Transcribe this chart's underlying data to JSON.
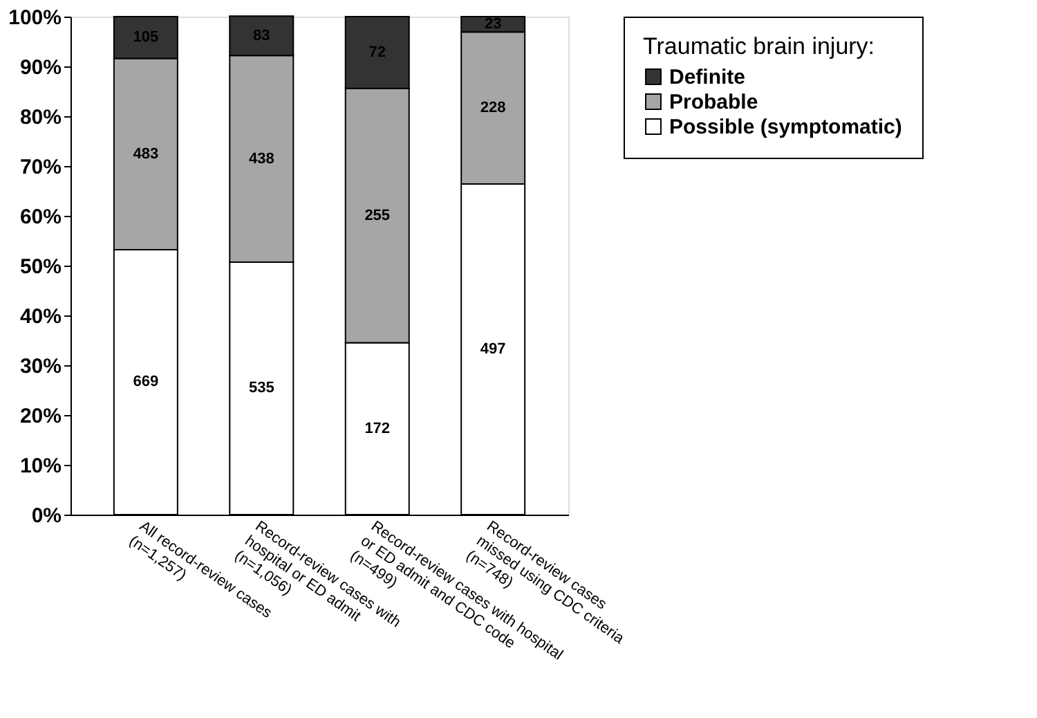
{
  "chart_data": {
    "type": "bar",
    "stacked": true,
    "categories": [
      "All record-review cases\n(n=1,257)",
      "Record-review cases with\nhospital or ED admit\n(n=1,056)",
      "Record-review cases with hospital\nor ED admit and CDC code\n(n=499)",
      "Record-review cases\nmissed using CDC criteria\n(n=748)"
    ],
    "series": [
      {
        "name": "Possible (symptomatic)",
        "color": "#ffffff",
        "values": [
          53.2,
          50.7,
          34.5,
          66.4
        ]
      },
      {
        "name": "Probable",
        "color": "#a6a6a6",
        "values": [
          38.4,
          41.5,
          51.1,
          30.5
        ]
      },
      {
        "name": "Definite",
        "color": "#333333",
        "values": [
          8.4,
          7.9,
          14.4,
          3.1
        ]
      }
    ],
    "annotations": [
      "669",
      "535",
      "172",
      "497",
      "483",
      "438",
      "255",
      "228",
      "105",
      "83",
      "72",
      "23"
    ],
    "legend_title": "Traumatic brain injury:",
    "legend": "right",
    "grid": false,
    "ylim": [
      0,
      100
    ],
    "yticks": [
      {
        "value": 0,
        "label": "0%"
      },
      {
        "value": 10,
        "label": "10%"
      },
      {
        "value": 20,
        "label": "20%"
      },
      {
        "value": 30,
        "label": "30%"
      },
      {
        "value": 40,
        "label": "40%"
      },
      {
        "value": 50,
        "label": "50%"
      },
      {
        "value": 60,
        "label": "60%"
      },
      {
        "value": 70,
        "label": "70%"
      },
      {
        "value": 80,
        "label": "80%"
      },
      {
        "value": 90,
        "label": "90%"
      },
      {
        "value": 100,
        "label": "100%"
      }
    ]
  }
}
